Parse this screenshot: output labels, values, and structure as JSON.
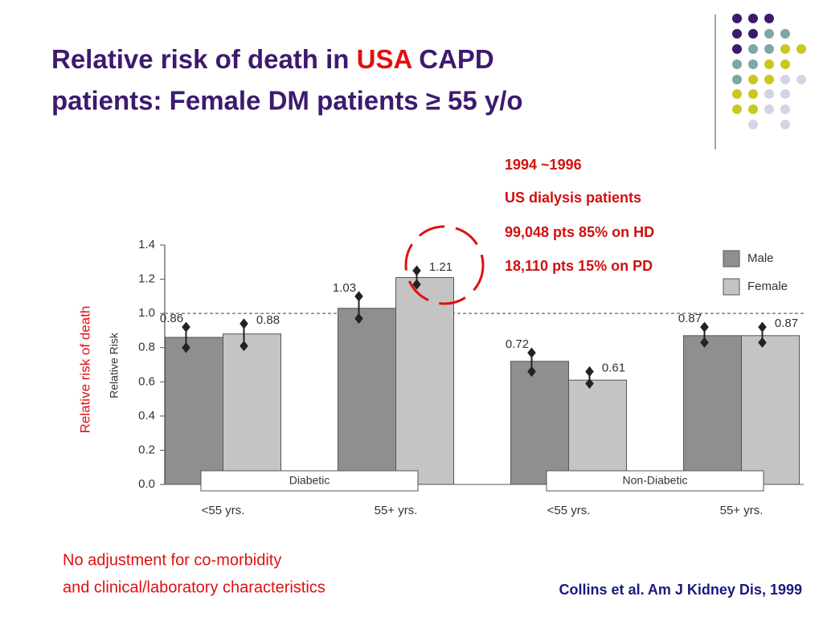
{
  "title_lines": [
    [
      "Relative risk of death in",
      "USA",
      "CAPD"
    ],
    [
      "patients: Female DM patients ≥ 55 y/o"
    ]
  ],
  "notes": [
    "1994 ~1996",
    "US dialysis patients",
    "99,048 pts 85% on HD",
    "18,110 pts 15% on PD"
  ],
  "side_label": "Relative risk of death",
  "footnote": [
    "No adjustment for co-morbidity",
    "and clinical/laboratory characteristics"
  ],
  "citation": "Collins et al. Am J Kidney Dis, 1999",
  "chart_data": {
    "type": "bar",
    "ylabel": "Relative Risk",
    "categories": [
      "<55 yrs.",
      "55+ yrs.",
      "<55 yrs.",
      "55+ yrs."
    ],
    "groups": [
      "Diabetic",
      "Non-Diabetic"
    ],
    "series": [
      {
        "name": "Male",
        "color": "#8f8f8f",
        "values": [
          0.86,
          1.03,
          0.72,
          0.87
        ],
        "ci_low": [
          0.8,
          0.97,
          0.66,
          0.83
        ],
        "ci_high": [
          0.92,
          1.1,
          0.77,
          0.92
        ]
      },
      {
        "name": "Female",
        "color": "#c4c4c4",
        "values": [
          0.88,
          1.21,
          0.61,
          0.87
        ],
        "ci_low": [
          0.81,
          1.17,
          0.59,
          0.83
        ],
        "ci_high": [
          0.94,
          1.25,
          0.66,
          0.92
        ]
      }
    ],
    "reference_line": 1,
    "ylim": [
      0,
      1.4
    ],
    "yticks": [
      {
        "value": 0,
        "label": "0.0"
      },
      0.2,
      0.4,
      0.6,
      0.8,
      {
        "value": 1,
        "label": "1.0"
      },
      1.2,
      1.4
    ],
    "legend": "upper right"
  }
}
